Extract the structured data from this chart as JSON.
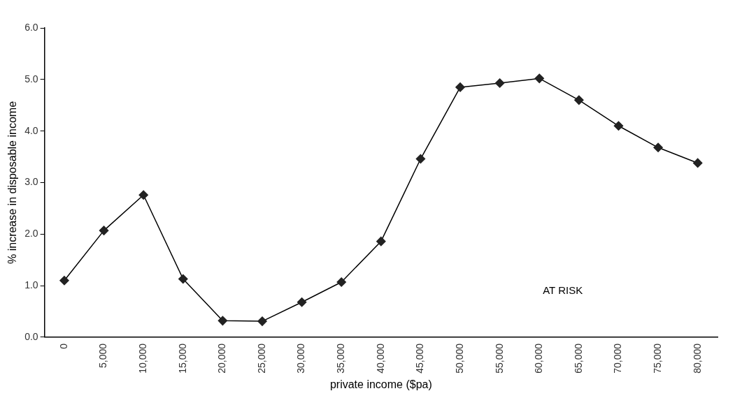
{
  "chart_data": {
    "type": "line",
    "xlabel": "private income ($pa)",
    "ylabel": "% increase in disposable income",
    "categories": [
      "0",
      "5,000",
      "10,000",
      "15,000",
      "20,000",
      "25,000",
      "30,000",
      "35,000",
      "40,000",
      "45,000",
      "50,000",
      "55,000",
      "60,000",
      "65,000",
      "70,000",
      "75,000",
      "80,000"
    ],
    "series": [
      {
        "color": "#222222",
        "values": [
          1.1,
          2.07,
          2.76,
          1.13,
          0.32,
          0.31,
          0.68,
          1.07,
          1.86,
          3.46,
          4.85,
          4.93,
          5.02,
          4.6,
          4.1,
          3.68,
          3.38
        ]
      }
    ],
    "ylim": [
      0,
      6
    ],
    "yticks": [
      {
        "value": 0,
        "label": "0.0"
      },
      {
        "value": 1,
        "label": "1.0"
      },
      {
        "value": 2,
        "label": "2.0"
      },
      {
        "value": 3,
        "label": "3.0"
      },
      {
        "value": 4,
        "label": "4.0"
      },
      {
        "value": 5,
        "label": "5.0"
      },
      {
        "value": 6,
        "label": "6.0"
      }
    ],
    "annotations": [
      "AT RISK"
    ],
    "grid": false,
    "legend": false,
    "marker": "diamond",
    "line_style": "solid"
  }
}
